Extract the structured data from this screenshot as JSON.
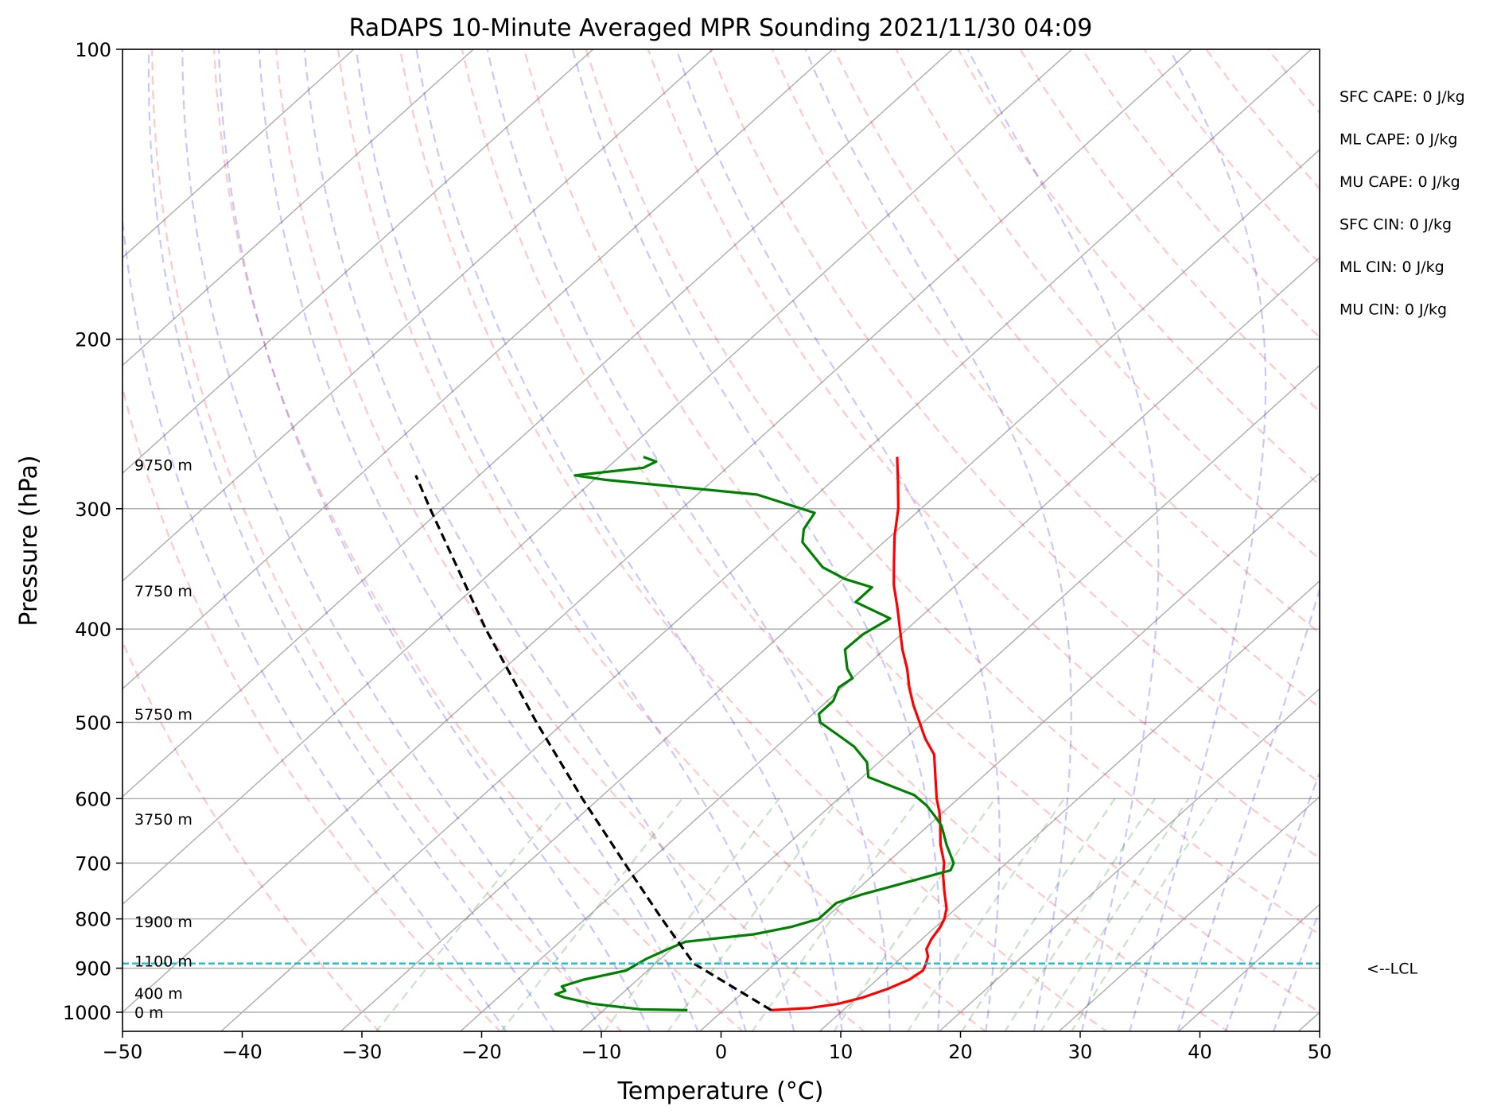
{
  "chart_data": {
    "type": "line",
    "title": "RaDAPS 10-Minute Averaged MPR Sounding 2021/11/30 04:09",
    "xlabel": "Temperature (°C)",
    "ylabel": "Pressure (hPa)",
    "xlim": [
      -50,
      50
    ],
    "ylim": [
      1050,
      100
    ],
    "y_scale": "log",
    "skew": "skew-T diagram",
    "grid": true,
    "x_ticks": [
      "−50",
      "−40",
      "−30",
      "−20",
      "−10",
      "0",
      "10",
      "20",
      "30",
      "40",
      "50"
    ],
    "y_ticks": [
      "100",
      "200",
      "300",
      "400",
      "500",
      "600",
      "700",
      "800",
      "900",
      "1000"
    ],
    "height_labels": [
      {
        "p": 1000,
        "text": "0 m"
      },
      {
        "p": 955,
        "text": "400 m"
      },
      {
        "p": 885,
        "text": "1100 m"
      },
      {
        "p": 805,
        "text": "1900 m"
      },
      {
        "p": 630,
        "text": "3750 m"
      },
      {
        "p": 490,
        "text": "5750 m"
      },
      {
        "p": 365,
        "text": "7750 m"
      },
      {
        "p": 270,
        "text": "9750 m"
      }
    ],
    "lcl": {
      "p": 890,
      "label": "<--LCL",
      "color": "#17becf"
    },
    "indices": [
      "SFC CAPE: 0 J/kg",
      "ML CAPE: 0 J/kg",
      "MU CAPE: 0 J/kg",
      "SFC CIN: 0 J/kg",
      "ML CIN: 0 J/kg",
      "MU CIN: 0 J/kg"
    ],
    "series": [
      {
        "role": "temperature",
        "color": "#ff0000",
        "points": [
          {
            "p": 995,
            "t": 4.0
          },
          {
            "p": 990,
            "t": 7.0
          },
          {
            "p": 980,
            "t": 9.0
          },
          {
            "p": 965,
            "t": 10.5
          },
          {
            "p": 945,
            "t": 11.8
          },
          {
            "p": 925,
            "t": 12.7
          },
          {
            "p": 905,
            "t": 13.0
          },
          {
            "p": 890,
            "t": 12.6
          },
          {
            "p": 875,
            "t": 12.1
          },
          {
            "p": 860,
            "t": 11.3
          },
          {
            "p": 840,
            "t": 10.8
          },
          {
            "p": 815,
            "t": 10.4
          },
          {
            "p": 800,
            "t": 10.0
          },
          {
            "p": 780,
            "t": 9.2
          },
          {
            "p": 750,
            "t": 7.5
          },
          {
            "p": 720,
            "t": 5.8
          },
          {
            "p": 700,
            "t": 4.8
          },
          {
            "p": 670,
            "t": 2.8
          },
          {
            "p": 640,
            "t": 1.0
          },
          {
            "p": 620,
            "t": -0.3
          },
          {
            "p": 600,
            "t": -1.8
          },
          {
            "p": 570,
            "t": -3.9
          },
          {
            "p": 540,
            "t": -6.1
          },
          {
            "p": 520,
            "t": -8.3
          },
          {
            "p": 500,
            "t": -10.3
          },
          {
            "p": 480,
            "t": -12.4
          },
          {
            "p": 460,
            "t": -14.4
          },
          {
            "p": 440,
            "t": -16.3
          },
          {
            "p": 420,
            "t": -18.5
          },
          {
            "p": 400,
            "t": -20.6
          },
          {
            "p": 380,
            "t": -22.8
          },
          {
            "p": 360,
            "t": -25.2
          },
          {
            "p": 340,
            "t": -27.4
          },
          {
            "p": 320,
            "t": -29.7
          },
          {
            "p": 300,
            "t": -31.9
          },
          {
            "p": 280,
            "t": -34.6
          },
          {
            "p": 265,
            "t": -36.8
          }
        ]
      },
      {
        "role": "dewpoint",
        "color": "#008000",
        "points": [
          {
            "p": 995,
            "t": -3.0
          },
          {
            "p": 993,
            "t": -7.0
          },
          {
            "p": 980,
            "t": -11.5
          },
          {
            "p": 965,
            "t": -14.5
          },
          {
            "p": 958,
            "t": -15.5
          },
          {
            "p": 950,
            "t": -15.0
          },
          {
            "p": 940,
            "t": -15.7
          },
          {
            "p": 925,
            "t": -14.5
          },
          {
            "p": 905,
            "t": -11.8
          },
          {
            "p": 880,
            "t": -11.2
          },
          {
            "p": 860,
            "t": -10.3
          },
          {
            "p": 845,
            "t": -9.5
          },
          {
            "p": 830,
            "t": -4.5
          },
          {
            "p": 815,
            "t": -2.0
          },
          {
            "p": 800,
            "t": -0.5
          },
          {
            "p": 790,
            "t": -0.5
          },
          {
            "p": 770,
            "t": -0.5
          },
          {
            "p": 755,
            "t": 0.8
          },
          {
            "p": 735,
            "t": 3.2
          },
          {
            "p": 712,
            "t": 6.0
          },
          {
            "p": 700,
            "t": 5.6
          },
          {
            "p": 670,
            "t": 3.3
          },
          {
            "p": 640,
            "t": 1.1
          },
          {
            "p": 625,
            "t": -0.4
          },
          {
            "p": 610,
            "t": -2.0
          },
          {
            "p": 595,
            "t": -4.0
          },
          {
            "p": 570,
            "t": -9.5
          },
          {
            "p": 550,
            "t": -11.0
          },
          {
            "p": 530,
            "t": -13.5
          },
          {
            "p": 515,
            "t": -16.0
          },
          {
            "p": 500,
            "t": -18.6
          },
          {
            "p": 490,
            "t": -19.5
          },
          {
            "p": 475,
            "t": -19.5
          },
          {
            "p": 460,
            "t": -20.3
          },
          {
            "p": 450,
            "t": -20.0
          },
          {
            "p": 440,
            "t": -21.3
          },
          {
            "p": 420,
            "t": -23.3
          },
          {
            "p": 405,
            "t": -23.2
          },
          {
            "p": 390,
            "t": -22.4
          },
          {
            "p": 375,
            "t": -26.8
          },
          {
            "p": 362,
            "t": -26.8
          },
          {
            "p": 355,
            "t": -29.8
          },
          {
            "p": 345,
            "t": -32.8
          },
          {
            "p": 325,
            "t": -36.8
          },
          {
            "p": 315,
            "t": -37.9
          },
          {
            "p": 303,
            "t": -38.5
          },
          {
            "p": 290,
            "t": -45.0
          },
          {
            "p": 280,
            "t": -59.0
          },
          {
            "p": 277,
            "t": -62.0
          },
          {
            "p": 272,
            "t": -57.0
          },
          {
            "p": 268,
            "t": -56.5
          },
          {
            "p": 265,
            "t": -58.0
          }
        ]
      },
      {
        "role": "parcel",
        "color": "#000000",
        "points": [
          {
            "p": 995,
            "t": 4.0
          },
          {
            "p": 890,
            "t": -6.8
          },
          {
            "p": 800,
            "t": -13.6
          },
          {
            "p": 700,
            "t": -21.9
          },
          {
            "p": 600,
            "t": -31.4
          },
          {
            "p": 500,
            "t": -42.3
          },
          {
            "p": 400,
            "t": -55.2
          },
          {
            "p": 300,
            "t": -71.0
          },
          {
            "p": 277,
            "t": -75.3
          }
        ]
      }
    ]
  }
}
